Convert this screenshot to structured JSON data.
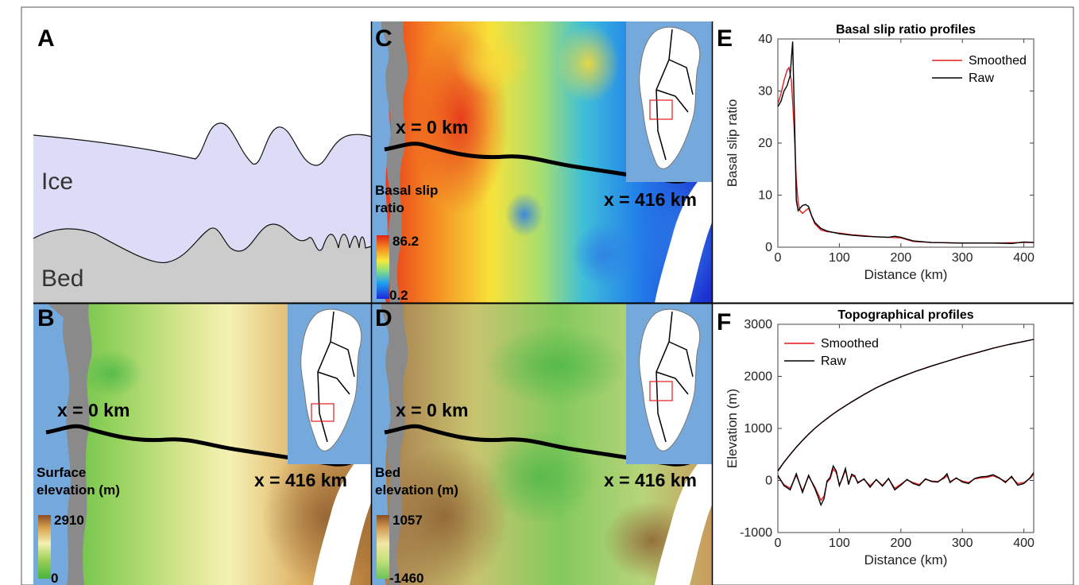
{
  "panels": {
    "a": {
      "letter": "A",
      "ice_label": "Ice",
      "bed_label": "Bed",
      "colors": {
        "ice": "#dcdcf7",
        "bed": "#cccccc"
      }
    },
    "b": {
      "letter": "B",
      "start_label": "x = 0 km",
      "end_label": "x = 416 km",
      "colorbar_title_1": "Surface",
      "colorbar_title_2": "elevation (m)",
      "colorbar_max": "2910",
      "colorbar_min": "0",
      "colormap": [
        "#48b43c",
        "#9fd05a",
        "#f5f0b0",
        "#d7a24e",
        "#8a4d22"
      ]
    },
    "c": {
      "letter": "C",
      "start_label": "x = 0 km",
      "end_label": "x = 416 km",
      "colorbar_title_1": "Basal slip",
      "colorbar_title_2": "ratio",
      "colorbar_max": "86.2",
      "colorbar_min": "0.2",
      "colormap": [
        "#1c28d8",
        "#1fa0f0",
        "#8ee07a",
        "#f7e93a",
        "#f58a1f",
        "#e02414"
      ]
    },
    "d": {
      "letter": "D",
      "start_label": "x = 0 km",
      "end_label": "x = 416 km",
      "colorbar_title_1": "Bed",
      "colorbar_title_2": "elevation (m)",
      "colorbar_max": "1057",
      "colorbar_min": "-1460",
      "colormap": [
        "#6ac35a",
        "#c7e27a",
        "#f3e7a4",
        "#d09a52",
        "#8a4d22"
      ]
    },
    "e": {
      "letter": "E"
    },
    "f": {
      "letter": "F"
    }
  },
  "chart_data": [
    {
      "type": "line",
      "panel": "E",
      "title": "Basal slip ratio profiles",
      "xlabel": "Distance (km)",
      "ylabel": "Basal slip ratio",
      "xlim": [
        0,
        416
      ],
      "ylim": [
        0,
        40
      ],
      "xticks": [
        0,
        100,
        200,
        300,
        400
      ],
      "yticks": [
        0,
        10,
        20,
        30,
        40
      ],
      "legend": "top-right",
      "series": [
        {
          "name": "Smoothed",
          "color": "#e31a1c",
          "x": [
            0,
            5,
            10,
            15,
            18,
            22,
            26,
            30,
            33,
            36,
            40,
            45,
            50,
            55,
            60,
            70,
            80,
            100,
            120,
            140,
            160,
            180,
            200,
            220,
            250,
            300,
            350,
            400,
            416
          ],
          "y": [
            27.5,
            29.5,
            32,
            34,
            34.5,
            32,
            24,
            13,
            8.5,
            7,
            6.5,
            7,
            7.5,
            6,
            4.5,
            3.3,
            3,
            2.7,
            2.4,
            2.2,
            2,
            1.9,
            1.8,
            1.1,
            0.9,
            0.8,
            0.8,
            0.9,
            0.9
          ]
        },
        {
          "name": "Raw",
          "color": "#000000",
          "x": [
            0,
            5,
            10,
            15,
            20,
            24,
            27,
            30,
            33,
            36,
            40,
            45,
            50,
            55,
            60,
            70,
            80,
            100,
            120,
            140,
            160,
            180,
            190,
            200,
            220,
            250,
            300,
            350,
            380,
            400,
            416
          ],
          "y": [
            27,
            28,
            30,
            31,
            33,
            39.5,
            25,
            9,
            7,
            7.5,
            8,
            8.2,
            7.8,
            6,
            4.8,
            3.6,
            3.1,
            2.6,
            2.3,
            2.1,
            2,
            1.9,
            2.1,
            1.9,
            1.2,
            0.9,
            0.8,
            0.8,
            0.7,
            1,
            0.9
          ]
        }
      ]
    },
    {
      "type": "line",
      "panel": "F",
      "title": "Topographical profiles",
      "xlabel": "Distance (km)",
      "ylabel": "Elevation (m)",
      "xlim": [
        0,
        416
      ],
      "ylim": [
        -1000,
        3000
      ],
      "xticks": [
        0,
        100,
        200,
        300,
        400
      ],
      "yticks": [
        -1000,
        0,
        1000,
        2000,
        3000
      ],
      "legend": "top-left",
      "series": [
        {
          "name": "Smoothed",
          "color": "#e31a1c",
          "x": [
            0,
            10,
            20,
            30,
            40,
            50,
            60,
            70,
            80,
            90,
            100,
            120,
            140,
            160,
            180,
            200,
            225,
            250,
            275,
            300,
            325,
            350,
            375,
            400,
            416
          ],
          "y": [
            190,
            350,
            500,
            640,
            770,
            890,
            1000,
            1100,
            1190,
            1280,
            1360,
            1510,
            1650,
            1780,
            1890,
            1990,
            2100,
            2200,
            2290,
            2380,
            2460,
            2540,
            2610,
            2670,
            2710
          ],
          "x2": [
            0,
            10,
            20,
            30,
            40,
            50,
            60,
            65,
            70,
            75,
            80,
            85,
            90,
            95,
            100,
            105,
            110,
            115,
            120,
            125,
            130,
            140,
            150,
            160,
            170,
            180,
            190,
            200,
            210,
            220,
            230,
            240,
            250,
            260,
            270,
            275,
            280,
            290,
            300,
            310,
            320,
            330,
            340,
            350,
            360,
            370,
            380,
            390,
            400,
            410,
            416
          ],
          "y2": [
            80,
            -80,
            -150,
            100,
            -200,
            80,
            -120,
            -250,
            -380,
            -300,
            -30,
            30,
            220,
            150,
            -80,
            40,
            200,
            -50,
            90,
            70,
            -30,
            20,
            -100,
            10,
            -90,
            30,
            -150,
            -70,
            10,
            -40,
            -80,
            20,
            -10,
            -20,
            40,
            90,
            -20,
            40,
            -10,
            -40,
            30,
            50,
            60,
            90,
            40,
            -20,
            60,
            -60,
            -40,
            40,
            120
          ]
        },
        {
          "name": "Raw",
          "color": "#000000",
          "x": [
            0,
            10,
            20,
            30,
            40,
            50,
            60,
            70,
            80,
            90,
            100,
            120,
            140,
            160,
            180,
            200,
            225,
            250,
            275,
            300,
            325,
            350,
            375,
            400,
            416
          ],
          "y": [
            180,
            350,
            500,
            640,
            770,
            890,
            1000,
            1100,
            1190,
            1280,
            1360,
            1510,
            1650,
            1780,
            1890,
            1990,
            2100,
            2200,
            2290,
            2380,
            2460,
            2540,
            2610,
            2670,
            2710
          ],
          "x2": [
            0,
            10,
            20,
            30,
            40,
            50,
            60,
            65,
            70,
            75,
            80,
            85,
            90,
            95,
            100,
            105,
            110,
            115,
            120,
            125,
            130,
            140,
            150,
            160,
            170,
            180,
            190,
            200,
            210,
            220,
            230,
            240,
            250,
            260,
            270,
            275,
            280,
            290,
            300,
            310,
            320,
            330,
            340,
            350,
            360,
            370,
            380,
            390,
            400,
            410,
            416
          ],
          "y2": [
            100,
            -100,
            -180,
            130,
            -230,
            100,
            -150,
            -300,
            -470,
            -350,
            -10,
            60,
            280,
            180,
            -100,
            60,
            230,
            -80,
            120,
            90,
            -50,
            30,
            -130,
            20,
            -110,
            40,
            -180,
            -90,
            20,
            -60,
            -100,
            30,
            -20,
            -30,
            60,
            130,
            -40,
            50,
            -30,
            -60,
            40,
            70,
            80,
            110,
            50,
            -40,
            80,
            -90,
            -60,
            50,
            150
          ]
        }
      ]
    }
  ]
}
